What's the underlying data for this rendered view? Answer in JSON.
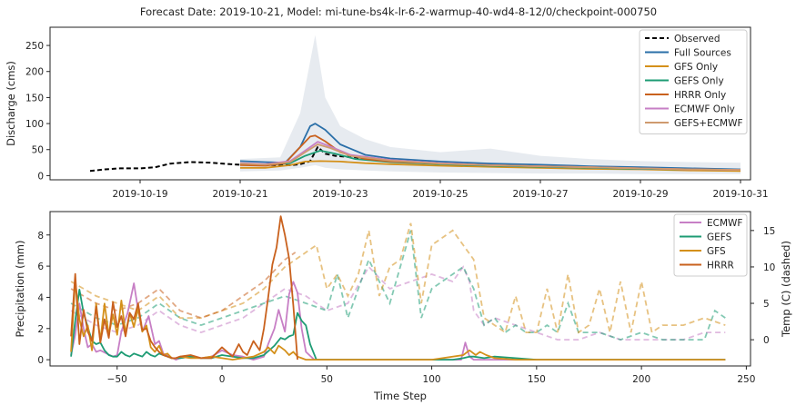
{
  "title": "Forecast Date: 2019-10-21, Model: mi-tune-bs4k-lr-6-2-warmup-40-wd4-8-12/0/checkpoint-000750",
  "chart_data": [
    {
      "type": "line",
      "ylabel": "Discharge (cms)",
      "ylim": [
        -8,
        285
      ],
      "yticks": [
        0,
        50,
        100,
        150,
        200,
        250
      ],
      "xticks": [
        "2019-10-19",
        "2019-10-21",
        "2019-10-23",
        "2019-10-25",
        "2019-10-27",
        "2019-10-29",
        "2019-10-31"
      ],
      "xtick_days": [
        1,
        3,
        5,
        7,
        9,
        11,
        13
      ],
      "xlim_days": [
        -0.8,
        13.2
      ],
      "x_unit": "days since 2019-10-18",
      "grid": false,
      "legend_position": "top-right",
      "uncertainty_band": {
        "color": "#dde3ea",
        "x": [
          3,
          3.8,
          4.2,
          4.5,
          4.7,
          5.0,
          5.5,
          6,
          7,
          8,
          9,
          10,
          11,
          12,
          13
        ],
        "upper": [
          32,
          35,
          120,
          270,
          150,
          95,
          70,
          55,
          45,
          52,
          38,
          32,
          28,
          26,
          25
        ],
        "lower": [
          8,
          10,
          15,
          20,
          15,
          12,
          10,
          8,
          6,
          5,
          4,
          4,
          3,
          3,
          3
        ]
      },
      "series": [
        {
          "name": "Observed",
          "color": "#000000",
          "dashed": true,
          "x": [
            0,
            0.3,
            0.6,
            1.0,
            1.3,
            1.6,
            2.0,
            2.4,
            2.8,
            3.0,
            4.0,
            4.2,
            4.4,
            4.55,
            4.7,
            4.9,
            5.3,
            6
          ],
          "y": [
            9,
            12,
            14,
            14,
            16,
            23,
            26,
            25,
            22,
            21,
            20,
            22,
            28,
            55,
            42,
            38,
            35,
            30
          ]
        },
        {
          "name": "Full Sources",
          "color": "#2a6fa8",
          "x": [
            3,
            3.5,
            3.9,
            4.2,
            4.4,
            4.5,
            4.7,
            5.0,
            5.5,
            6,
            7,
            8,
            9,
            10,
            11,
            12,
            13
          ],
          "y": [
            28,
            26,
            25,
            55,
            95,
            100,
            88,
            60,
            40,
            33,
            27,
            23,
            21,
            18,
            16,
            14,
            12
          ]
        },
        {
          "name": "GFS Only",
          "color": "#d4901a",
          "x": [
            3,
            3.5,
            4.0,
            4.3,
            4.6,
            5.0,
            5.5,
            6,
            7,
            8,
            9,
            10,
            11,
            12,
            13
          ],
          "y": [
            15,
            15,
            20,
            27,
            28,
            27,
            24,
            22,
            19,
            17,
            15,
            13,
            12,
            10,
            9
          ]
        },
        {
          "name": "GEFS Only",
          "color": "#1e9c74",
          "x": [
            3,
            3.5,
            4.0,
            4.3,
            4.6,
            4.9,
            5.3,
            6,
            7,
            8,
            9,
            10,
            11,
            12,
            13
          ],
          "y": [
            22,
            20,
            24,
            38,
            48,
            42,
            32,
            26,
            22,
            19,
            17,
            15,
            13,
            12,
            11
          ]
        },
        {
          "name": "HRRR Only",
          "color": "#c9611d",
          "x": [
            3,
            3.5,
            3.9,
            4.2,
            4.4,
            4.5,
            4.7,
            5.0,
            5.5,
            6,
            7,
            8,
            9,
            10,
            11,
            12,
            13
          ],
          "y": [
            20,
            19,
            24,
            55,
            75,
            77,
            66,
            45,
            32,
            27,
            23,
            20,
            18,
            16,
            14,
            12,
            11
          ]
        },
        {
          "name": "ECMWF Only",
          "color": "#c77fc5",
          "x": [
            3,
            3.5,
            4.0,
            4.3,
            4.55,
            4.8,
            5.2,
            6,
            7,
            8,
            9,
            10,
            11,
            12,
            13
          ],
          "y": [
            24,
            22,
            28,
            48,
            65,
            56,
            40,
            30,
            24,
            20,
            18,
            16,
            14,
            12,
            11
          ]
        },
        {
          "name": "GEFS+ECMWF",
          "color": "#cf9a6e",
          "x": [
            3,
            3.5,
            4.0,
            4.3,
            4.55,
            4.8,
            5.2,
            6,
            7,
            8,
            9,
            10,
            11,
            12,
            13
          ],
          "y": [
            23,
            21,
            26,
            45,
            60,
            53,
            38,
            29,
            23,
            20,
            18,
            16,
            14,
            12,
            11
          ]
        }
      ]
    },
    {
      "type": "line",
      "xlabel": "Time Step",
      "ylabel": "Precipitation (mm)",
      "ylabel_right": "Temp (C) (dashed)",
      "xlim": [
        -82,
        252
      ],
      "ylim": [
        -0.4,
        9.5
      ],
      "ylim_right": [
        -3.6,
        17.6
      ],
      "xticks": [
        -50,
        0,
        50,
        100,
        150,
        200,
        250
      ],
      "yticks": [
        0,
        2,
        4,
        6,
        8
      ],
      "yticks_right": [
        0,
        5,
        10,
        15
      ],
      "grid": false,
      "legend_position": "top-right",
      "series": [
        {
          "name": "ECMWF",
          "color": "#c77fc5",
          "x": [
            -72,
            -70,
            -68,
            -66,
            -64,
            -62,
            -60,
            -58,
            -55,
            -52,
            -50,
            -48,
            -45,
            -42,
            -40,
            -38,
            -35,
            -32,
            -30,
            -28,
            -25,
            -22,
            -20,
            -15,
            -10,
            -5,
            0,
            5,
            10,
            15,
            20,
            22,
            25,
            27,
            30,
            32,
            34,
            36,
            38,
            40,
            44,
            50,
            80,
            100,
            114,
            116,
            118,
            120,
            140,
            160,
            200,
            240
          ],
          "y": [
            0.3,
            1.6,
            3.6,
            2.0,
            0.8,
            1.0,
            0.5,
            0.6,
            0.4,
            0.2,
            0.3,
            1.8,
            3.0,
            4.9,
            3.2,
            1.8,
            2.8,
            1.0,
            1.2,
            0.4,
            0.2,
            0.0,
            0.1,
            0.2,
            0.1,
            0.2,
            0.6,
            0.3,
            0.2,
            0.0,
            0.2,
            1.0,
            2.0,
            3.2,
            1.8,
            4.2,
            5.0,
            4.3,
            2.0,
            0.5,
            0.0,
            0.0,
            0.0,
            0.0,
            0.0,
            1.1,
            0.2,
            0.0,
            0.0,
            0.0,
            0.0,
            0.0
          ]
        },
        {
          "name": "GEFS",
          "color": "#1e9c74",
          "x": [
            -72,
            -70,
            -68,
            -66,
            -64,
            -62,
            -60,
            -58,
            -56,
            -54,
            -52,
            -50,
            -48,
            -46,
            -44,
            -42,
            -40,
            -38,
            -36,
            -34,
            -32,
            -30,
            -28,
            -26,
            -24,
            -22,
            -20,
            -15,
            -10,
            -5,
            0,
            5,
            10,
            15,
            20,
            25,
            28,
            30,
            32,
            34,
            36,
            38,
            40,
            42,
            45,
            60,
            100,
            110,
            115,
            118,
            120,
            125,
            130,
            140,
            150,
            160,
            180,
            200,
            220,
            240
          ],
          "y": [
            0.2,
            2.5,
            4.5,
            3.0,
            2.1,
            1.2,
            1.0,
            1.1,
            0.6,
            0.3,
            0.2,
            0.2,
            0.5,
            0.3,
            0.2,
            0.4,
            0.3,
            0.2,
            0.5,
            0.3,
            0.2,
            0.4,
            0.3,
            0.2,
            0.1,
            0.1,
            0.1,
            0.2,
            0.1,
            0.1,
            0.3,
            0.2,
            0.1,
            0.1,
            0.3,
            0.9,
            1.4,
            1.3,
            1.5,
            1.6,
            3.0,
            2.5,
            2.2,
            1.0,
            0.0,
            0.0,
            0.0,
            0.0,
            0.1,
            0.2,
            0.2,
            0.1,
            0.2,
            0.1,
            0.0,
            0.0,
            0.0,
            0.0,
            0.0,
            0.0
          ]
        },
        {
          "name": "GFS",
          "color": "#d4901a",
          "x": [
            -72,
            -70,
            -68,
            -66,
            -64,
            -62,
            -60,
            -58,
            -56,
            -54,
            -52,
            -50,
            -48,
            -46,
            -44,
            -42,
            -40,
            -38,
            -36,
            -34,
            -32,
            -30,
            -28,
            -26,
            -24,
            -22,
            -20,
            -15,
            -10,
            -5,
            0,
            5,
            10,
            15,
            20,
            22,
            25,
            27,
            30,
            32,
            34,
            36,
            38,
            40,
            45,
            50,
            60,
            100,
            115,
            118,
            121,
            123,
            126,
            130,
            140,
            160,
            200,
            240
          ],
          "y": [
            0.5,
            5.1,
            2.6,
            1.5,
            2.2,
            0.6,
            3.6,
            1.2,
            3.6,
            1.6,
            2.9,
            1.6,
            3.8,
            1.7,
            3.0,
            2.1,
            3.3,
            1.8,
            2.2,
            0.8,
            0.5,
            0.9,
            0.3,
            0.4,
            0.1,
            0.1,
            0.2,
            0.1,
            0.1,
            0.2,
            0.1,
            0.0,
            0.1,
            0.2,
            0.5,
            0.8,
            0.4,
            0.9,
            0.6,
            0.3,
            0.5,
            0.2,
            0.1,
            0.0,
            0.0,
            0.0,
            0.0,
            0.0,
            0.3,
            0.6,
            0.3,
            0.5,
            0.3,
            0.1,
            0.0,
            0.0,
            0.0,
            0.0
          ]
        },
        {
          "name": "HRRR",
          "color": "#c9611d",
          "x": [
            -72,
            -70,
            -68,
            -66,
            -64,
            -62,
            -60,
            -58,
            -56,
            -54,
            -52,
            -50,
            -48,
            -46,
            -44,
            -42,
            -40,
            -38,
            -36,
            -34,
            -32,
            -30,
            -28,
            -26,
            -24,
            -22,
            -20,
            -15,
            -10,
            -5,
            0,
            5,
            8,
            10,
            12,
            15,
            18,
            20,
            22,
            24,
            26,
            28,
            30,
            32,
            34,
            36
          ],
          "y": [
            1.5,
            5.5,
            1.0,
            3.2,
            1.8,
            1.2,
            3.4,
            1.1,
            2.6,
            1.4,
            3.7,
            2.1,
            2.8,
            1.5,
            3.0,
            2.6,
            3.6,
            1.9,
            2.0,
            1.2,
            0.8,
            0.5,
            0.3,
            0.2,
            0.1,
            0.1,
            0.2,
            0.3,
            0.1,
            0.1,
            0.8,
            0.2,
            1.0,
            0.5,
            0.3,
            1.2,
            0.6,
            2.0,
            4.0,
            6.1,
            7.2,
            9.2,
            8.0,
            6.5,
            3.5,
            0.0
          ]
        }
      ],
      "temperature_series": [
        {
          "name": "ECMWF",
          "color": "#c77fc5",
          "dashed": true,
          "x": [
            -72,
            -60,
            -50,
            -40,
            -30,
            -20,
            -10,
            0,
            10,
            20,
            30,
            40,
            50,
            60,
            70,
            80,
            90,
            100,
            110,
            115,
            118,
            120,
            125,
            130,
            140,
            150,
            160,
            170,
            180,
            190,
            200,
            210,
            220,
            230,
            240
          ],
          "y": [
            4,
            2,
            1,
            2,
            4,
            2,
            1,
            2,
            3,
            5,
            7,
            6,
            4,
            5,
            10,
            7,
            8,
            9,
            8,
            10,
            8,
            4,
            2,
            3,
            2,
            1,
            0,
            0,
            1,
            0,
            0,
            0,
            0,
            1,
            1
          ]
        },
        {
          "name": "GEFS",
          "color": "#1e9c74",
          "dashed": true,
          "x": [
            -72,
            -60,
            -50,
            -40,
            -30,
            -20,
            -10,
            0,
            10,
            20,
            30,
            40,
            50,
            55,
            60,
            65,
            70,
            80,
            85,
            90,
            95,
            100,
            105,
            110,
            115,
            120,
            125,
            130,
            135,
            140,
            145,
            150,
            155,
            160,
            165,
            170,
            180,
            190,
            200,
            210,
            220,
            230,
            235,
            240
          ],
          "y": [
            5,
            3,
            2,
            3,
            5,
            3,
            2,
            3,
            4,
            5,
            6,
            5,
            4,
            9,
            3,
            7,
            11,
            5,
            10,
            15,
            3,
            7,
            8,
            9,
            10,
            7,
            2,
            3,
            1,
            2,
            1,
            1,
            2,
            1,
            5,
            1,
            1,
            0,
            1,
            0,
            0,
            0,
            4,
            3
          ]
        },
        {
          "name": "GFS",
          "color": "#d4901a",
          "dashed": true,
          "x": [
            -72,
            -60,
            -50,
            -40,
            -30,
            -20,
            -10,
            0,
            10,
            20,
            30,
            40,
            45,
            50,
            55,
            60,
            65,
            70,
            75,
            80,
            85,
            90,
            95,
            100,
            105,
            110,
            115,
            120,
            125,
            130,
            135,
            140,
            145,
            150,
            155,
            160,
            165,
            170,
            175,
            180,
            185,
            190,
            195,
            200,
            205,
            210,
            220,
            230,
            240
          ],
          "y": [
            8,
            6,
            5,
            4,
            6,
            3,
            3,
            4,
            5,
            7,
            10,
            12,
            13,
            7,
            9,
            6,
            9,
            15,
            6,
            10,
            11,
            16,
            5,
            13,
            14,
            15,
            13,
            11,
            3,
            2,
            1,
            6,
            1,
            1,
            7,
            1,
            9,
            1,
            2,
            7,
            1,
            8,
            1,
            8,
            1,
            2,
            2,
            3,
            2
          ]
        },
        {
          "name": "HRRR",
          "color": "#c9611d",
          "dashed": true,
          "x": [
            -72,
            -60,
            -50,
            -40,
            -30,
            -20,
            -10,
            0,
            10,
            20,
            30,
            35
          ],
          "y": [
            7,
            5,
            4,
            5,
            7,
            4,
            3,
            4,
            6,
            8,
            11,
            12
          ]
        }
      ]
    }
  ]
}
